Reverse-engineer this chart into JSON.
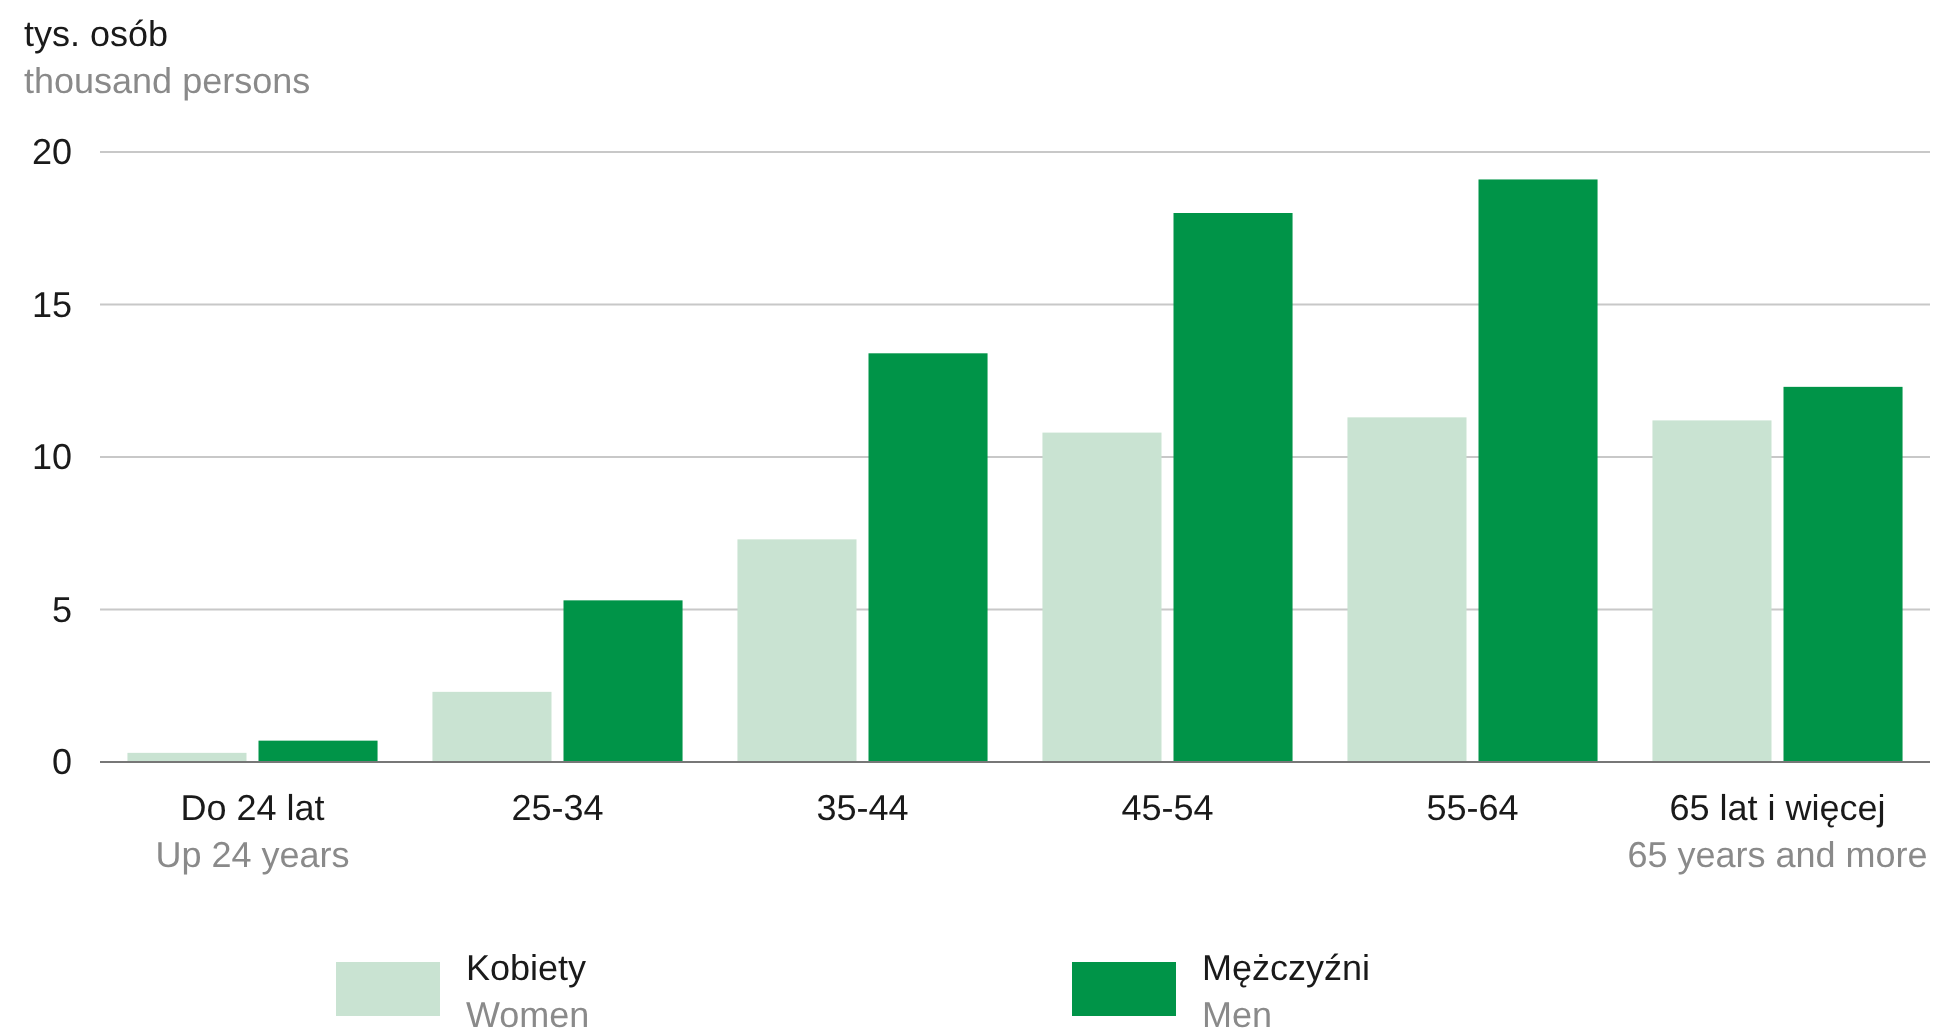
{
  "chart_data": {
    "type": "bar",
    "ylabel": "tys. osób\nthousand persons",
    "categories": [
      "Do 24 lat\nUp 24 years",
      "25-34",
      "35-44",
      "45-54",
      "55-64",
      "65 lat i więcej\n65 years and more"
    ],
    "series": [
      {
        "name": "Kobiety\nWomen",
        "color": "#c9e3d2",
        "values": [
          0.3,
          2.3,
          7.3,
          10.8,
          11.3,
          11.2
        ]
      },
      {
        "name": "Mężczyźni\nMen",
        "color": "#009448",
        "values": [
          0.7,
          5.3,
          13.4,
          18.0,
          19.1,
          12.3
        ]
      }
    ],
    "ylim": [
      0,
      20
    ],
    "yticks": [
      0,
      5,
      10,
      15,
      20
    ],
    "grid": "y",
    "legend": "bottom"
  }
}
